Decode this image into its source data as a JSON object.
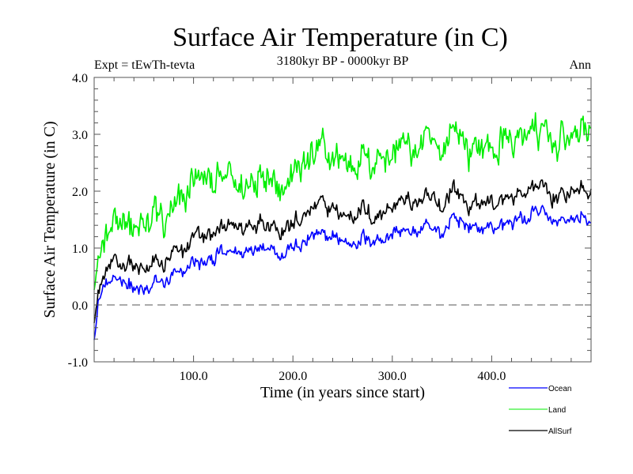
{
  "chart_data": {
    "type": "line",
    "title": "Surface Air Temperature (in C)",
    "subtitle": "3180kyr BP - 0000kyr BP",
    "top_left_label": "Expt = tEwTh-tevta",
    "top_right_label": "Ann",
    "xlabel": "Time (in years since start)",
    "ylabel": "Surface Air Temperature (in C)",
    "xlim": [
      0,
      500
    ],
    "ylim": [
      -1.0,
      4.0
    ],
    "x_ticks": [
      100,
      200,
      300,
      400
    ],
    "x_tick_labels": [
      "100.0",
      "200.0",
      "300.0",
      "400.0"
    ],
    "x_minor_step": 20,
    "y_ticks": [
      -1.0,
      0.0,
      1.0,
      2.0,
      3.0,
      4.0
    ],
    "y_tick_labels": [
      "-1.0",
      "0.0",
      "1.0",
      "2.0",
      "3.0",
      "4.0"
    ],
    "y_minor_step": 0.2,
    "reference_line": {
      "y": 0.0,
      "style": "dashed",
      "color": "#555555"
    },
    "grid": false,
    "legend_position": "bottom-right",
    "x": [
      0,
      5,
      10,
      20,
      30,
      40,
      50,
      60,
      70,
      80,
      90,
      100,
      110,
      120,
      130,
      140,
      150,
      160,
      170,
      180,
      190,
      200,
      210,
      220,
      230,
      240,
      250,
      260,
      270,
      280,
      290,
      300,
      310,
      320,
      330,
      340,
      350,
      360,
      370,
      380,
      390,
      400,
      410,
      420,
      430,
      440,
      450,
      460,
      470,
      480,
      490,
      500
    ],
    "series": [
      {
        "name": "Ocean",
        "color": "#0000ff",
        "values": [
          -0.6,
          0.1,
          0.3,
          0.4,
          0.45,
          0.3,
          0.2,
          0.4,
          0.4,
          0.5,
          0.55,
          0.8,
          0.7,
          0.85,
          0.9,
          0.95,
          0.9,
          1.0,
          1.05,
          1.0,
          0.9,
          1.0,
          1.05,
          1.2,
          1.25,
          1.2,
          1.15,
          1.1,
          1.2,
          1.1,
          1.2,
          1.25,
          1.3,
          1.25,
          1.35,
          1.3,
          1.25,
          1.55,
          1.45,
          1.35,
          1.4,
          1.35,
          1.4,
          1.45,
          1.5,
          1.6,
          1.6,
          1.45,
          1.45,
          1.5,
          1.55,
          1.45
        ]
      },
      {
        "name": "Land",
        "color": "#00ee00",
        "values": [
          0.3,
          0.9,
          1.1,
          1.35,
          1.5,
          1.35,
          1.3,
          1.55,
          1.5,
          1.7,
          1.75,
          2.3,
          2.1,
          2.2,
          2.1,
          2.3,
          2.0,
          2.3,
          2.4,
          2.3,
          2.1,
          2.35,
          2.4,
          2.65,
          2.7,
          2.55,
          2.6,
          2.5,
          2.7,
          2.45,
          2.6,
          2.65,
          2.85,
          2.7,
          2.8,
          2.9,
          2.6,
          3.2,
          2.9,
          2.7,
          2.85,
          2.75,
          2.85,
          2.9,
          2.95,
          3.1,
          3.05,
          2.9,
          2.9,
          3.0,
          3.1,
          3.0
        ]
      },
      {
        "name": "AllSurf",
        "color": "#000000",
        "values": [
          -0.3,
          0.3,
          0.6,
          0.75,
          0.8,
          0.65,
          0.55,
          0.75,
          0.75,
          0.85,
          0.9,
          1.3,
          1.15,
          1.3,
          1.3,
          1.4,
          1.3,
          1.45,
          1.5,
          1.45,
          1.3,
          1.45,
          1.5,
          1.7,
          1.75,
          1.65,
          1.6,
          1.55,
          1.7,
          1.55,
          1.65,
          1.7,
          1.85,
          1.75,
          1.85,
          1.85,
          1.7,
          2.1,
          1.9,
          1.75,
          1.85,
          1.8,
          1.85,
          1.9,
          1.95,
          2.05,
          2.05,
          1.9,
          1.9,
          1.95,
          2.05,
          1.95
        ]
      }
    ],
    "noise_amplitude": {
      "Ocean": 0.12,
      "Land": 0.28,
      "AllSurf": 0.15
    }
  }
}
